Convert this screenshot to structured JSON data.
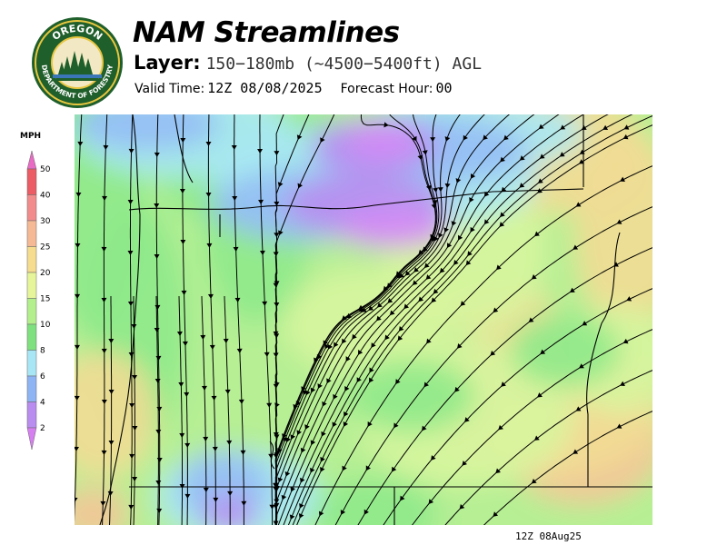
{
  "header": {
    "title": "NAM Streamlines",
    "layer_label": "Layer:",
    "layer_value": "150−180mb (~4500−5400ft) AGL",
    "valid_label": "Valid Time:",
    "valid_value": "12Z 08/08/2025",
    "forecast_label": "Forecast Hour:",
    "forecast_value": "00"
  },
  "logo": {
    "top_text": "OREGON",
    "bottom_text": "DEPARTMENT OF FORESTRY"
  },
  "colorbar": {
    "unit": "MPH",
    "ticks": [
      "2",
      "4",
      "6",
      "8",
      "10",
      "15",
      "20",
      "25",
      "30",
      "40",
      "50"
    ],
    "colors": [
      "#d67ff0",
      "#b98cf0",
      "#8eb4f4",
      "#a8e6f6",
      "#7fe07f",
      "#b3ef8c",
      "#e6f59a",
      "#f5dc8f",
      "#f5b995",
      "#f28c8c",
      "#ec5c64",
      "#e86cc4"
    ]
  },
  "map": {
    "speed_colors": {
      "purple": "#d68af5",
      "violet": "#b88ef0",
      "blue": "#93bdf5",
      "cyan": "#a8e8f5",
      "green": "#8ee98a",
      "lightgreen": "#b6ef94",
      "yellowgreen": "#d7f59d",
      "tan": "#f2dc93",
      "orange": "#f4c497"
    },
    "boundary_color": "#000000",
    "streamline_color": "#000000"
  },
  "footer": {
    "stamp": "12Z 08Aug25"
  }
}
